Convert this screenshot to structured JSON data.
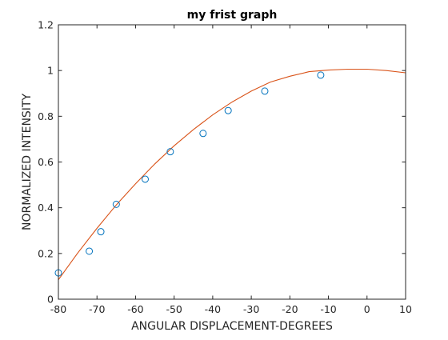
{
  "chart_data": {
    "type": "scatter",
    "title": "my frist graph",
    "xlabel": "ANGULAR DISPLACEMENT-DEGREES",
    "ylabel": "NORMALIZED INTENSITY",
    "xlim": [
      -80,
      10
    ],
    "ylim": [
      0,
      1.2
    ],
    "xticks": [
      -80,
      -70,
      -60,
      -50,
      -40,
      -30,
      -20,
      -10,
      0,
      10
    ],
    "yticks": [
      0,
      0.2,
      0.4,
      0.6,
      0.8,
      1,
      1.2
    ],
    "xtick_labels": [
      "-80",
      "-70",
      "-60",
      "-50",
      "-40",
      "-30",
      "-20",
      "-10",
      "0",
      "10"
    ],
    "ytick_labels": [
      "0",
      "0.2",
      "0.4",
      "0.6",
      "0.8",
      "1",
      "1.2"
    ],
    "grid": false,
    "box": true,
    "series": [
      {
        "type": "scatter",
        "marker": "circle-open",
        "color": "#0072bd",
        "x": [
          -80,
          -72,
          -69,
          -65,
          -57.5,
          -51,
          -42.5,
          -36,
          -26.5,
          -12
        ],
        "y": [
          0.115,
          0.21,
          0.295,
          0.415,
          0.525,
          0.645,
          0.725,
          0.825,
          0.91,
          0.98
        ]
      },
      {
        "type": "line",
        "color": "#d95319",
        "x": [
          -80,
          -75,
          -70,
          -65,
          -60,
          -55,
          -50,
          -45,
          -40,
          -35,
          -30,
          -25,
          -20,
          -15,
          -10,
          -5,
          0,
          5,
          10
        ],
        "y": [
          0.085,
          0.202,
          0.31,
          0.412,
          0.505,
          0.592,
          0.671,
          0.742,
          0.806,
          0.862,
          0.91,
          0.95,
          0.975,
          0.995,
          1.002,
          1.006,
          1.006,
          1.0,
          0.99
        ]
      }
    ]
  }
}
